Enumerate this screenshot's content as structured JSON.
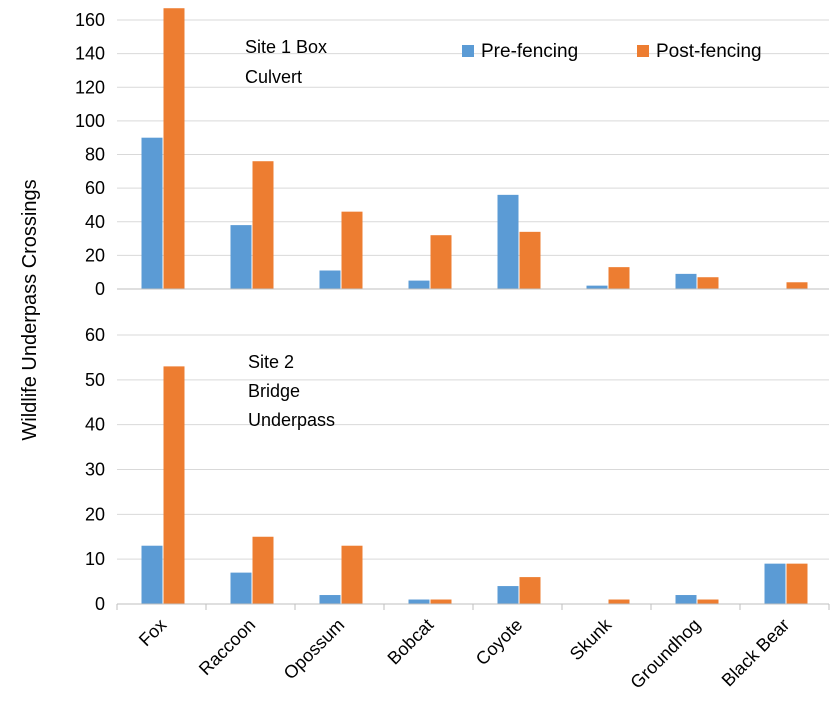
{
  "chart_data": {
    "type": "bar",
    "ylabel": "Wildlife Underpass Crossings",
    "categories": [
      "Fox",
      "Raccoon",
      "Opossum",
      "Bobcat",
      "Coyote",
      "Skunk",
      "Groundhog",
      "Black Bear"
    ],
    "legend": {
      "placement": "top-right"
    },
    "colors": {
      "Pre-fencing": "#5b9bd5",
      "Post-fencing": "#ed7d31"
    },
    "panels": [
      {
        "annotation": [
          "Site 1 Box",
          "Culvert"
        ],
        "ylim": [
          0,
          160
        ],
        "yticks": [
          0,
          20,
          40,
          60,
          80,
          100,
          120,
          140,
          160
        ],
        "grid": true,
        "series": [
          {
            "name": "Pre-fencing",
            "values": [
              90,
              38,
              11,
              5,
              56,
              2,
              9,
              0
            ]
          },
          {
            "name": "Post-fencing",
            "values": [
              167,
              76,
              46,
              32,
              34,
              13,
              7,
              4
            ]
          }
        ]
      },
      {
        "annotation": [
          "Site 2",
          "Bridge",
          "Underpass"
        ],
        "ylim": [
          0,
          60
        ],
        "yticks": [
          0,
          10,
          20,
          30,
          40,
          50,
          60
        ],
        "grid": true,
        "series": [
          {
            "name": "Pre-fencing",
            "values": [
              13,
              7,
              2,
              1,
              4,
              0,
              2,
              9
            ]
          },
          {
            "name": "Post-fencing",
            "values": [
              53,
              15,
              13,
              1,
              6,
              1,
              1,
              9
            ]
          }
        ]
      }
    ]
  }
}
